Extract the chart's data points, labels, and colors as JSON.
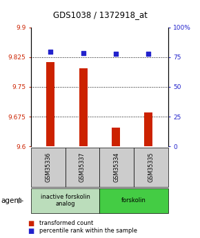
{
  "title": "GDS1038 / 1372918_at",
  "samples": [
    "GSM35336",
    "GSM35337",
    "GSM35334",
    "GSM35335"
  ],
  "bar_values": [
    9.812,
    9.797,
    9.647,
    9.685
  ],
  "percentile_values": [
    79.5,
    78.5,
    77.5,
    78.0
  ],
  "ylim_left": [
    9.6,
    9.9
  ],
  "ylim_right": [
    0,
    100
  ],
  "yticks_left": [
    9.6,
    9.675,
    9.75,
    9.825,
    9.9
  ],
  "ytick_labels_left": [
    "9.6",
    "9.675",
    "9.75",
    "9.825",
    "9.9"
  ],
  "yticks_right": [
    0,
    25,
    50,
    75,
    100
  ],
  "ytick_labels_right": [
    "0",
    "25",
    "50",
    "75",
    "100%"
  ],
  "grid_values": [
    9.675,
    9.75,
    9.825
  ],
  "bar_color": "#cc2200",
  "dot_color": "#2222cc",
  "agent_groups": [
    {
      "label": "inactive forskolin\nanalog",
      "color": "#bbddbb",
      "span": [
        0,
        2
      ]
    },
    {
      "label": "forskolin",
      "color": "#44cc44",
      "span": [
        2,
        4
      ]
    }
  ],
  "agent_label": "agent",
  "legend_bar_label": "transformed count",
  "legend_dot_label": "percentile rank within the sample",
  "sample_box_color": "#cccccc"
}
